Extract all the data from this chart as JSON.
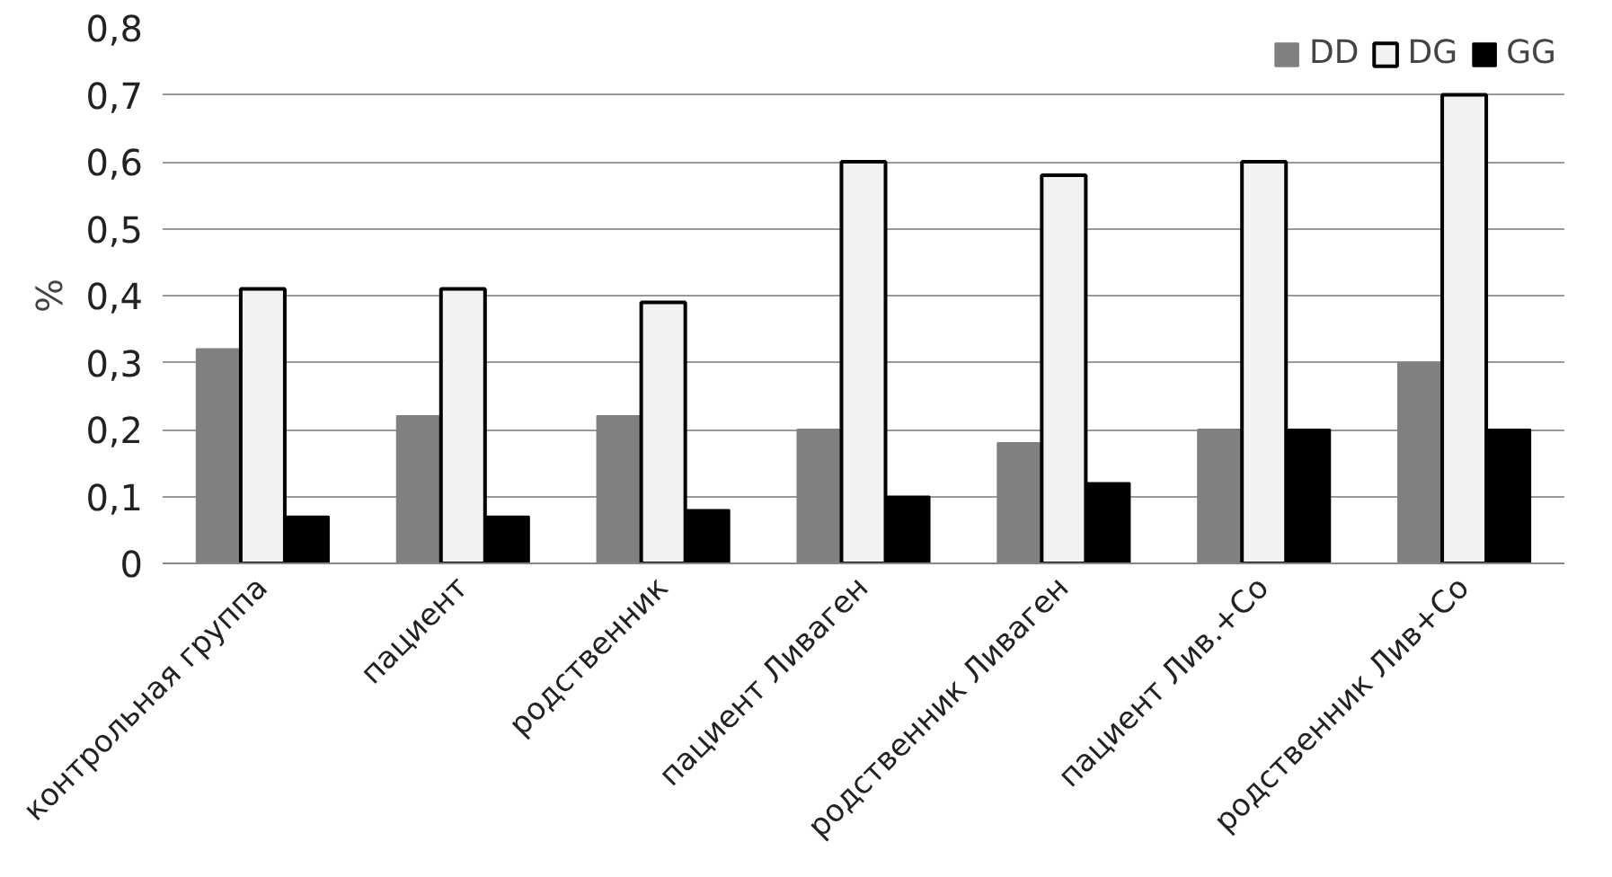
{
  "chart_data": {
    "type": "bar",
    "ylabel": "%",
    "categories": [
      "контрольная группа",
      "пациент",
      "родственник",
      "пациент Ливаген",
      "родственник Ливаген",
      "пациент Лив.+Co",
      "родственник Лив+Co"
    ],
    "series": [
      {
        "name": "DD",
        "color": "#808080",
        "values": [
          0.32,
          0.22,
          0.22,
          0.2,
          0.18,
          0.2,
          0.3
        ]
      },
      {
        "name": "DG",
        "color": "#f2f2f2",
        "values": [
          0.41,
          0.41,
          0.39,
          0.6,
          0.58,
          0.6,
          0.7
        ]
      },
      {
        "name": "GG",
        "color": "#000000",
        "values": [
          0.07,
          0.07,
          0.08,
          0.1,
          0.12,
          0.2,
          0.2
        ]
      }
    ],
    "ylim": [
      0,
      0.8
    ],
    "yticks": [
      {
        "value": 0,
        "label": "0"
      },
      {
        "value": 0.1,
        "label": "0,1"
      },
      {
        "value": 0.2,
        "label": "0,2"
      },
      {
        "value": 0.3,
        "label": "0,3"
      },
      {
        "value": 0.4,
        "label": "0,4"
      },
      {
        "value": 0.5,
        "label": "0,5"
      },
      {
        "value": 0.6,
        "label": "0,6"
      },
      {
        "value": 0.7,
        "label": "0,7"
      },
      {
        "value": 0.8,
        "label": "0,8"
      }
    ],
    "grid": "y",
    "legend": "top right"
  }
}
